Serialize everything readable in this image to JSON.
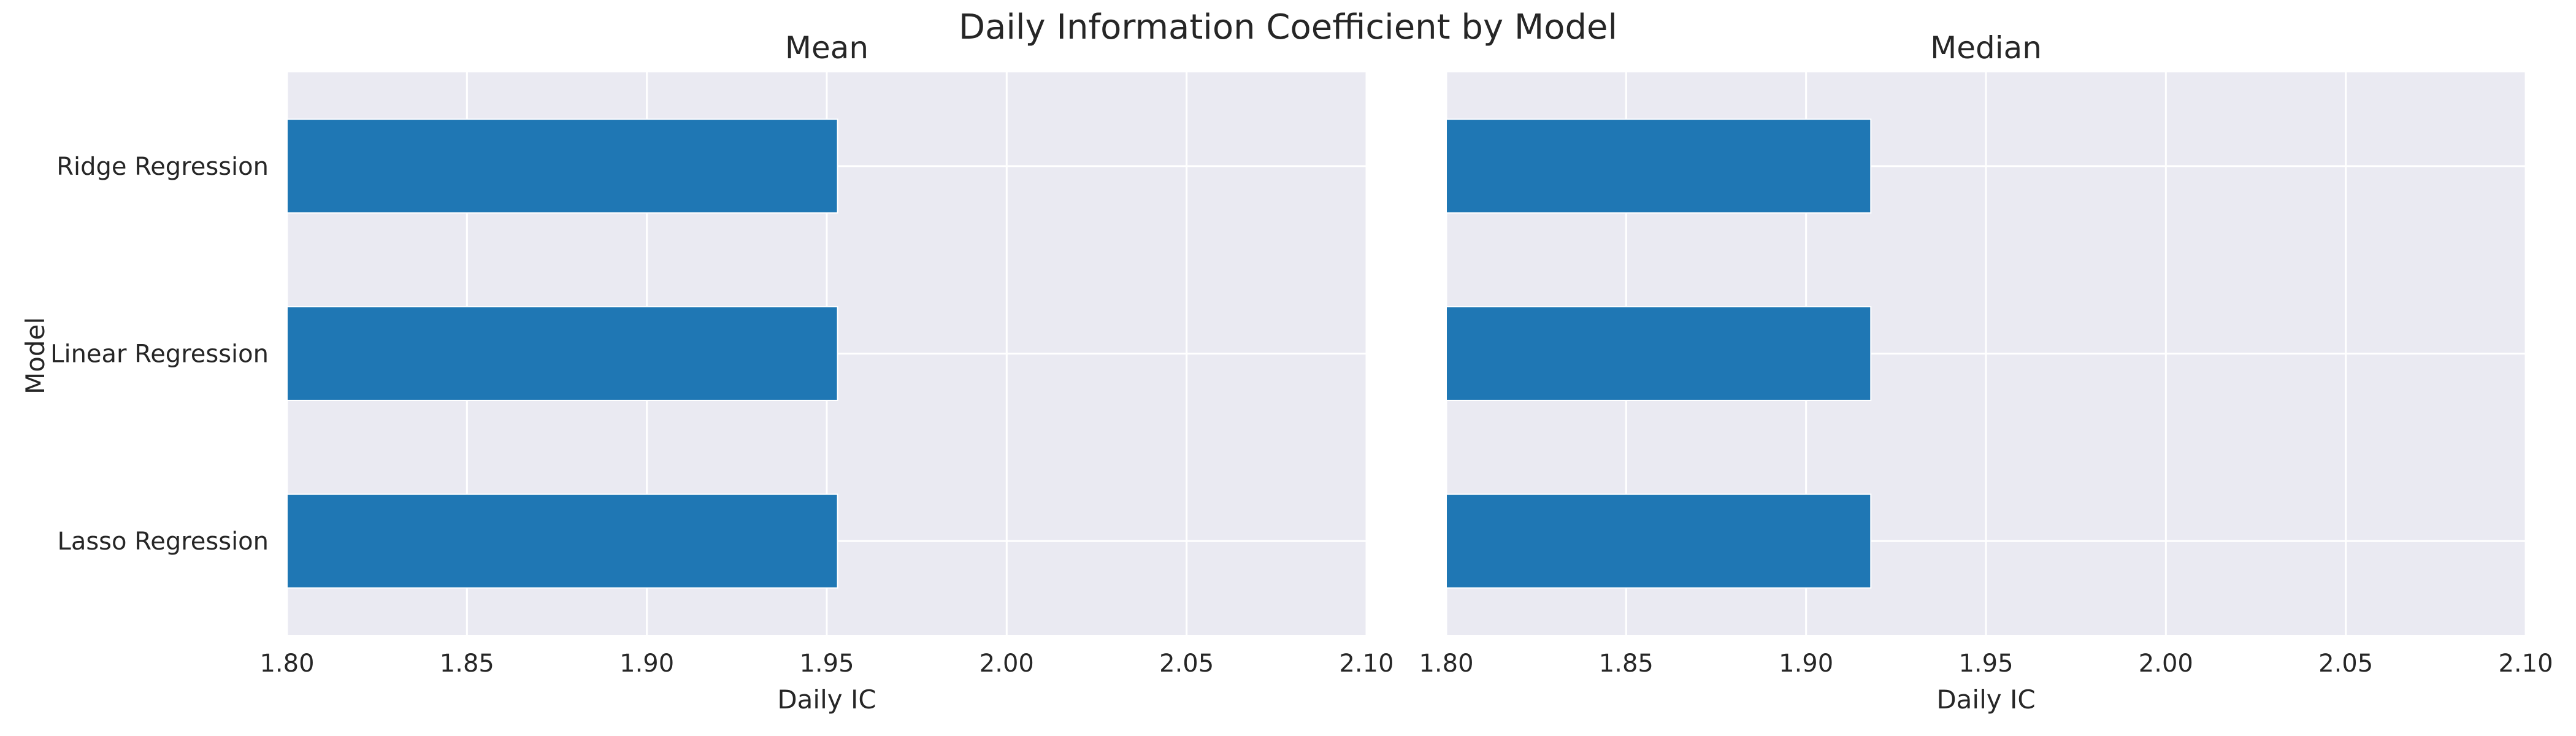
{
  "chart_data": {
    "title": "Daily Information Coefficient by Model",
    "type": "bar",
    "orientation": "horizontal",
    "ylabel": "Model",
    "categories": [
      "Ridge Regression",
      "Linear Regression",
      "Lasso Regression"
    ],
    "bar_color": "#1f77b4",
    "background_color": "#eaeaf2",
    "grid": true,
    "legend": "none",
    "panels": [
      {
        "title": "Mean",
        "xlabel": "Daily IC",
        "xlim": [
          1.8,
          2.1
        ],
        "xticks": [
          "1.80",
          "1.85",
          "1.90",
          "1.95",
          "2.00",
          "2.05",
          "2.10"
        ],
        "values": [
          1.953,
          1.953,
          1.953
        ]
      },
      {
        "title": "Median",
        "xlabel": "Daily IC",
        "xlim": [
          1.8,
          2.1
        ],
        "xticks": [
          "1.80",
          "1.85",
          "1.90",
          "1.95",
          "2.00",
          "2.05",
          "2.10"
        ],
        "values": [
          1.918,
          1.918,
          1.918
        ]
      }
    ]
  }
}
